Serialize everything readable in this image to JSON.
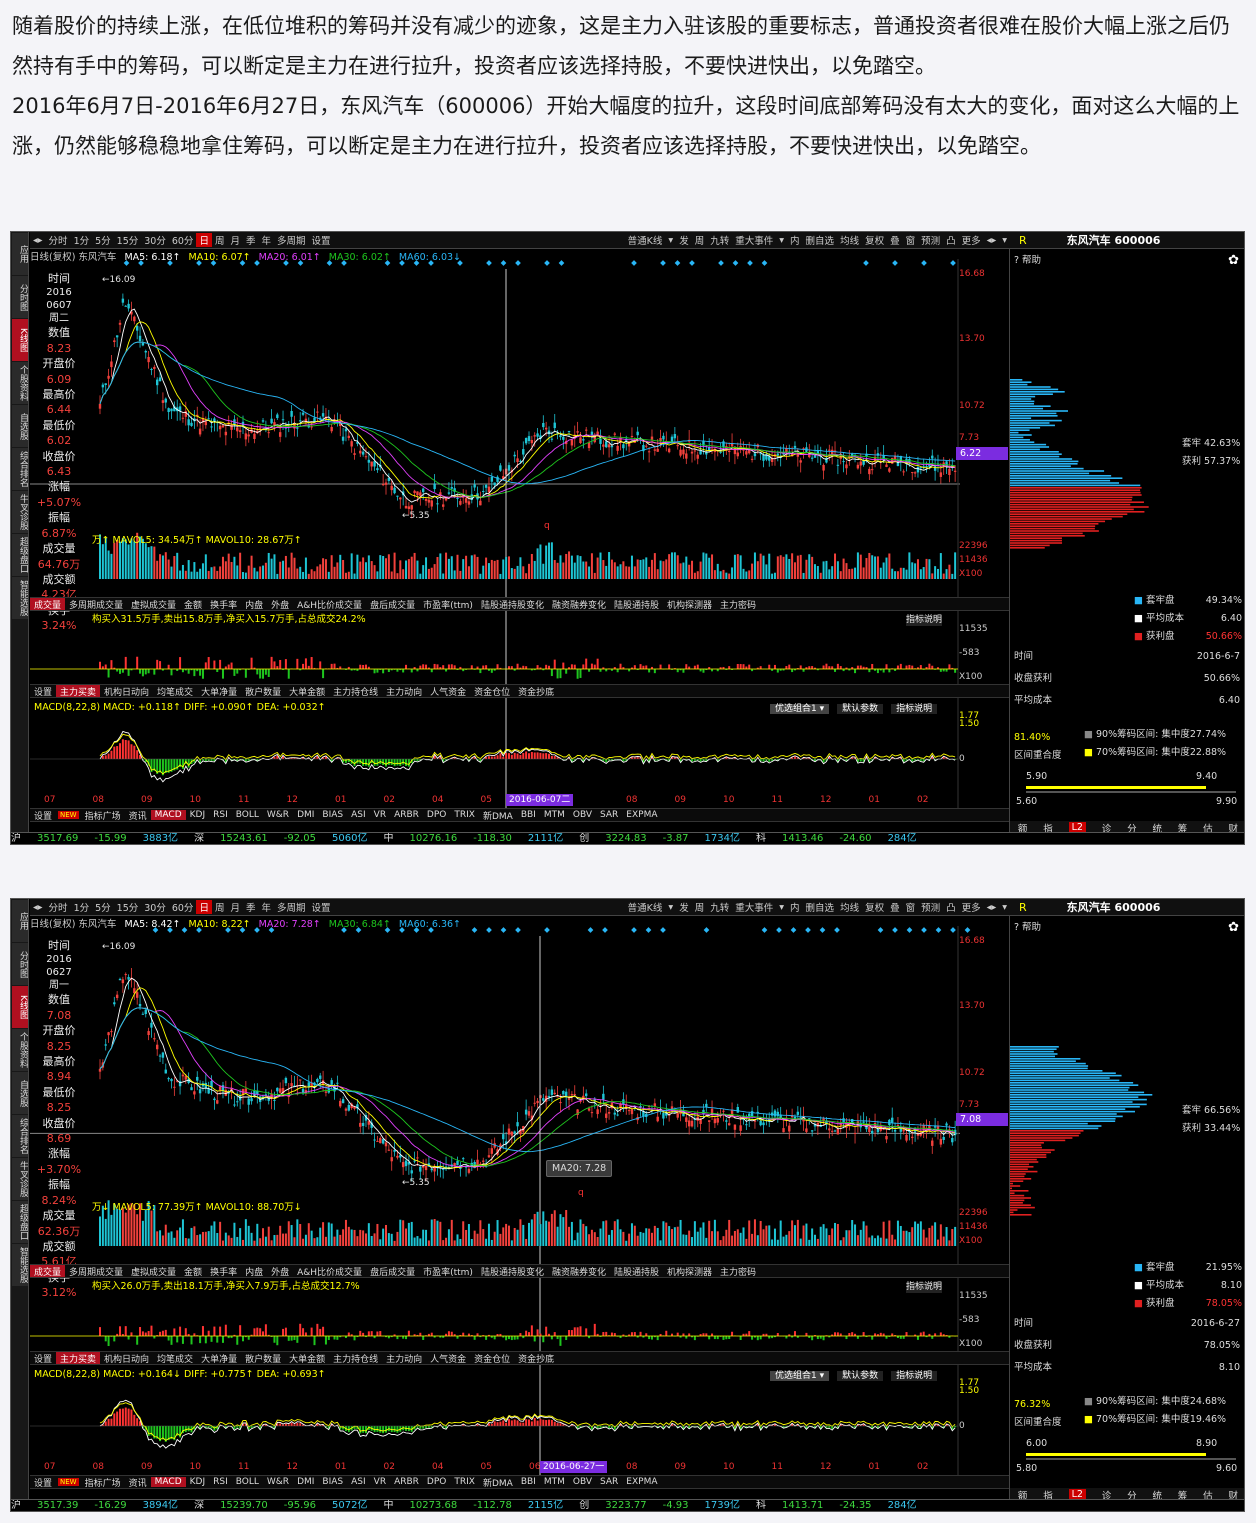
{
  "article": {
    "paragraph1": "随着股价的持续上涨，在低位堆积的筹码并没有减少的迹象，这是主力入驻该股的重要标志，普通投资者很难在股价大幅上涨之后仍然持有手中的筹码，可以断定是主力在进行拉升，投资者应该选择持股，不要快进快出，以免踏空。",
    "paragraph2": "2016年6月7日-2016年6月27日，东风汽车（600006）开始大幅度的拉升，这段时间底部筹码没有太大的变化，面对这么大幅的上涨，仍然能够稳稳地拿住筹码，可以断定是主力在进行拉升，投资者应该选择持股，不要快进快出，以免踏空。"
  },
  "common": {
    "left_tabs": [
      "应用",
      "分时图",
      "K线图",
      "个股资料",
      "自选股",
      "综合排名",
      "牛叉诊股",
      "超级盘口",
      "智能选股"
    ],
    "period_tabs": [
      "分时",
      "1分",
      "5分",
      "15分",
      "30分",
      "60分",
      "日",
      "周",
      "月",
      "季",
      "年",
      "多周期",
      "设置"
    ],
    "active_period": "日",
    "toolbar_right": [
      "普通K线",
      "▾",
      "发",
      "周",
      "九转",
      "重大事件",
      "▾",
      "内",
      "删自选",
      "均线",
      "复权",
      "叠",
      "窗",
      "预测",
      "凸",
      "更多",
      "◂▸",
      "▾"
    ],
    "stock_title": "东风汽车 600006",
    "r_label": "R",
    "help_label": "帮助",
    "help_icon": "?",
    "gear_icon": "✿",
    "kline_prefix": "日线(复权) 东风汽车",
    "data_labels": [
      "时间",
      "数值",
      "开盘价",
      "最高价",
      "最低价",
      "收盘价",
      "涨幅",
      "振幅",
      "成交量",
      "成交额",
      "换手"
    ],
    "price_axis": [
      "16.68",
      "13.70",
      "10.72",
      "7.73"
    ],
    "high_mark": "←16.09",
    "low_mark": "←5.35",
    "q_mark": "q",
    "vol_axis": [
      "22396",
      "11436",
      "X100"
    ],
    "flow_axis": [
      "11535",
      "-583",
      "X100"
    ],
    "macd_axis": [
      "1.77",
      "1.50",
      "0"
    ],
    "vol_tabs": [
      "成交量",
      "多周期成交量",
      "虚拟成交量",
      "金额",
      "换手率",
      "内盘",
      "外盘",
      "A&H比价成交量",
      "盘后成交量",
      "市盈率(ttm)",
      "陆股通持股变化",
      "融资融券变化",
      "陆股通持股",
      "机构探测器",
      "主力密码"
    ],
    "flow_tabs": [
      "设置",
      "主力买卖",
      "机构日动向",
      "均笔成交",
      "大单净量",
      "散户数量",
      "大单金额",
      "主力持仓线",
      "主力动向",
      "人气资金",
      "资金仓位",
      "资金抄底"
    ],
    "indicator_help": "指标说明",
    "macd_buttons": [
      "优选组合1 ▾",
      "默认参数",
      "指标说明"
    ],
    "bottom_tabs": [
      "设置",
      "NEW",
      "指标广场",
      "资讯",
      "MACD",
      "KDJ",
      "RSI",
      "BOLL",
      "W&R",
      "DMI",
      "BIAS",
      "ASI",
      "VR",
      "ARBR",
      "DPO",
      "TRIX",
      "新DMA",
      "BBI",
      "MTM",
      "OBV",
      "SAR",
      "EXPMA"
    ],
    "active_bottom": "MACD",
    "x_months": [
      "07",
      "08",
      "09",
      "10",
      "11",
      "12",
      "01",
      "02",
      "04",
      "05",
      "06",
      "",
      "08",
      "09",
      "10",
      "11",
      "12",
      "01",
      "02"
    ],
    "chip_rows_labels": [
      "套牢",
      "获利"
    ],
    "chip_legend": [
      "套牢盘",
      "平均成本",
      "获利盘"
    ],
    "chip_table_labels": [
      "时间",
      "收盘获利",
      "平均成本"
    ],
    "chip_concentration_label": "区间重合度",
    "chip_90_label": "90%筹码区间: 集中度",
    "chip_70_label": "70%筹码区间: 集中度",
    "right_tabs": [
      "额",
      "指",
      "L2",
      "诊",
      "分",
      "统",
      "筹",
      "估",
      "财"
    ],
    "active_right_tab": "L2",
    "colors": {
      "accent_red": "#c00",
      "up": "#f3413c",
      "down": "#1ec51e",
      "cyan": "#29b6f6",
      "magenta": "#e040fb",
      "purple": "#7b2ce0"
    }
  },
  "panels": [
    {
      "ma": {
        "ma5": "MA5: 6.18↑",
        "ma10": "MA10: 6.07↑",
        "ma20": "MA20: 6.01↑",
        "ma30": "MA30: 6.02↑",
        "ma60": "MA60: 6.03↓"
      },
      "data_values": [
        "2016\n0607\n周二",
        "8.23",
        "6.09",
        "6.44",
        "6.02",
        "6.43",
        "+5.07%",
        "6.87%",
        "64.76万",
        "4.23亿",
        "3.24%"
      ],
      "current_price_box": "6.22",
      "vol_info": "万↑  MAVOL5: 34.54万↑  MAVOL10: 28.67万↑",
      "flow_info": "构买入31.5万手,卖出15.8万手,净买入15.7万手,占总成交24.2%",
      "macd_info": "MACD(8,22,8)  MACD: +0.118↑  DIFF: +0.090↑  DEA: +0.032↑",
      "cursor_date": "2016-06-07二",
      "tooltip": "",
      "chip": {
        "trapped": "42.63%",
        "profit": "57.37%",
        "trapped_pan": "49.34%",
        "avg_cost": "6.40",
        "profit_pan": "50.66%",
        "date": "2016-6-7",
        "close_profit": "50.66%",
        "avg": "6.40",
        "overlap": "81.40%",
        "c90": "27.74%",
        "c70": "22.88%",
        "r90_low": "5.90",
        "r90_high": "9.40",
        "r70_low": "5.60",
        "r70_high": "9.90"
      },
      "status": [
        [
          "沪",
          "st-w"
        ],
        [
          "3517.69",
          "st-g"
        ],
        [
          "-15.99",
          "st-g"
        ],
        [
          "3883亿",
          "st-c"
        ],
        [
          "深",
          "st-w"
        ],
        [
          "15243.61",
          "st-g"
        ],
        [
          "-92.05",
          "st-g"
        ],
        [
          "5060亿",
          "st-c"
        ],
        [
          "中",
          "st-w"
        ],
        [
          "10276.16",
          "st-g"
        ],
        [
          "-118.30",
          "st-g"
        ],
        [
          "2111亿",
          "st-c"
        ],
        [
          "创",
          "st-w"
        ],
        [
          "3224.83",
          "st-g"
        ],
        [
          "-3.87",
          "st-g"
        ],
        [
          "1734亿",
          "st-c"
        ],
        [
          "科",
          "st-w"
        ],
        [
          "1413.46",
          "st-g"
        ],
        [
          "-24.60",
          "st-g"
        ],
        [
          "284亿",
          "st-c"
        ]
      ]
    },
    {
      "ma": {
        "ma5": "MA5: 8.42↑",
        "ma10": "MA10: 8.22↑",
        "ma20": "MA20: 7.28↑",
        "ma30": "MA30: 6.84↑",
        "ma60": "MA60: 6.36↑"
      },
      "data_values": [
        "2016\n0627\n周一",
        "7.08",
        "8.25",
        "8.94",
        "8.25",
        "8.69",
        "+3.70%",
        "8.24%",
        "62.36万",
        "5.61亿",
        "3.12%"
      ],
      "current_price_box": "7.08",
      "vol_info": "万↓  MAVOL5: 77.39万↑  MAVOL10: 88.70万↓",
      "flow_info": "构买入26.0万手,卖出18.1万手,净买入7.9万手,占总成交12.7%",
      "macd_info": "MACD(8,22,8)  MACD: +0.164↓  DIFF: +0.775↑  DEA: +0.693↑",
      "cursor_date": "2016-06-27一",
      "tooltip": "MA20: 7.28",
      "chip": {
        "trapped": "66.56%",
        "profit": "33.44%",
        "trapped_pan": "21.95%",
        "avg_cost": "8.10",
        "profit_pan": "78.05%",
        "date": "2016-6-27",
        "close_profit": "78.05%",
        "avg": "8.10",
        "overlap": "76.32%",
        "c90": "24.68%",
        "c70": "19.46%",
        "r90_low": "6.00",
        "r90_high": "8.90",
        "r70_low": "5.80",
        "r70_high": "9.60"
      },
      "status": [
        [
          "沪",
          "st-w"
        ],
        [
          "3517.39",
          "st-g"
        ],
        [
          "-16.29",
          "st-g"
        ],
        [
          "3894亿",
          "st-c"
        ],
        [
          "深",
          "st-w"
        ],
        [
          "15239.70",
          "st-g"
        ],
        [
          "-95.96",
          "st-g"
        ],
        [
          "5072亿",
          "st-c"
        ],
        [
          "中",
          "st-w"
        ],
        [
          "10273.68",
          "st-g"
        ],
        [
          "-112.78",
          "st-g"
        ],
        [
          "2115亿",
          "st-c"
        ],
        [
          "创",
          "st-w"
        ],
        [
          "3223.77",
          "st-g"
        ],
        [
          "-4.93",
          "st-g"
        ],
        [
          "1739亿",
          "st-c"
        ],
        [
          "科",
          "st-w"
        ],
        [
          "1413.71",
          "st-g"
        ],
        [
          "-24.35",
          "st-g"
        ],
        [
          "284亿",
          "st-c"
        ]
      ]
    }
  ]
}
